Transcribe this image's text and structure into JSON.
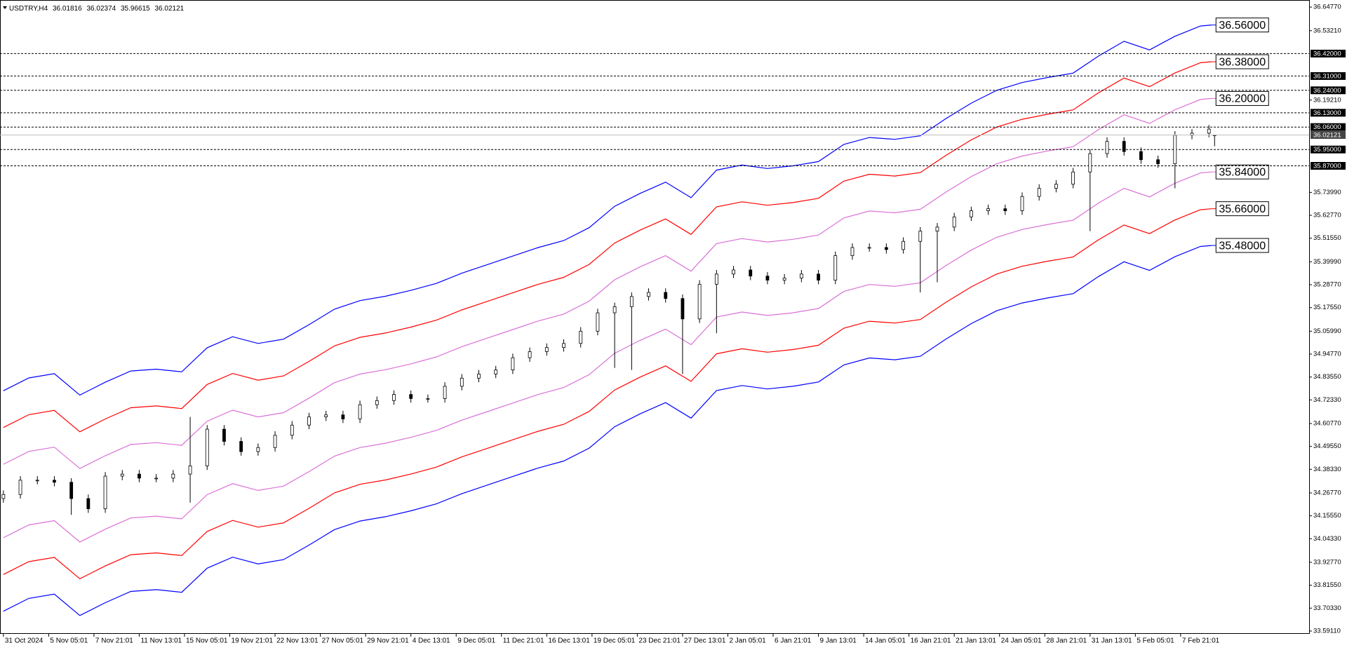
{
  "chart_data": {
    "type": "candlestick",
    "title": "USDTRY,H4",
    "xlim": [
      -1.2,
      461.4
    ],
    "ylim": [
      33.5806,
      36.6687
    ],
    "xticks": [
      {
        "value": 0,
        "label": "31 Oct 2024"
      },
      {
        "value": 16,
        "label": "5 Nov 05:01"
      },
      {
        "value": 32,
        "label": "7 Nov 21:01"
      },
      {
        "value": 48,
        "label": "11 Nov 13:01"
      },
      {
        "value": 64,
        "label": "15 Nov 05:01"
      },
      {
        "value": 80,
        "label": "19 Nov 21:01"
      },
      {
        "value": 96,
        "label": "22 Nov 13:01"
      },
      {
        "value": 112,
        "label": "27 Nov 05:01"
      },
      {
        "value": 128,
        "label": "29 Nov 21:01"
      },
      {
        "value": 144,
        "label": "4 Dec 13:01"
      },
      {
        "value": 160,
        "label": "9 Dec 05:01"
      },
      {
        "value": 176,
        "label": "11 Dec 21:01"
      },
      {
        "value": 192,
        "label": "16 Dec 13:01"
      },
      {
        "value": 208,
        "label": "19 Dec 05:01"
      },
      {
        "value": 224,
        "label": "23 Dec 21:01"
      },
      {
        "value": 240,
        "label": "27 Dec 13:01"
      },
      {
        "value": 256,
        "label": "2 Jan 05:01"
      },
      {
        "value": 272,
        "label": "6 Jan 21:01"
      },
      {
        "value": 288,
        "label": "9 Jan 13:01"
      },
      {
        "value": 304,
        "label": "14 Jan 05:01"
      },
      {
        "value": 320,
        "label": "16 Jan 21:01"
      },
      {
        "value": 336,
        "label": "21 Jan 13:01"
      },
      {
        "value": 352,
        "label": "24 Jan 05:01"
      },
      {
        "value": 368,
        "label": "28 Jan 21:01"
      },
      {
        "value": 384,
        "label": "31 Jan 13:01"
      },
      {
        "value": 400,
        "label": "5 Feb 05:01"
      },
      {
        "value": 416,
        "label": "7 Feb 21:01"
      }
    ],
    "yticks": [
      {
        "value": 36.6477,
        "label": "36.64770"
      },
      {
        "value": 36.5321,
        "label": "36.53210"
      },
      {
        "value": 36.1921,
        "label": "36.19210"
      },
      {
        "value": 35.7399,
        "label": "35.73990"
      },
      {
        "value": 35.6277,
        "label": "35.62770"
      },
      {
        "value": 35.5155,
        "label": "35.51550"
      },
      {
        "value": 35.3999,
        "label": "35.39990"
      },
      {
        "value": 35.2877,
        "label": "35.28770"
      },
      {
        "value": 35.1755,
        "label": "35.17550"
      },
      {
        "value": 35.0599,
        "label": "35.05990"
      },
      {
        "value": 34.9477,
        "label": "34.94770"
      },
      {
        "value": 34.8355,
        "label": "34.83550"
      },
      {
        "value": 34.7233,
        "label": "34.72330"
      },
      {
        "value": 34.6077,
        "label": "34.60770"
      },
      {
        "value": 34.4955,
        "label": "34.49550"
      },
      {
        "value": 34.3833,
        "label": "34.38330"
      },
      {
        "value": 34.2677,
        "label": "34.26770"
      },
      {
        "value": 34.1555,
        "label": "34.15550"
      },
      {
        "value": 34.0433,
        "label": "34.04330"
      },
      {
        "value": 33.9277,
        "label": "33.92770"
      },
      {
        "value": 33.8155,
        "label": "33.81550"
      },
      {
        "value": 33.7033,
        "label": "33.70330"
      },
      {
        "value": 33.5911,
        "label": "33.59110"
      }
    ],
    "levels": [
      {
        "value": 36.42,
        "label": "36.42000"
      },
      {
        "value": 36.31,
        "label": "36.31000"
      },
      {
        "value": 36.24,
        "label": "36.24000"
      },
      {
        "value": 36.13,
        "label": "36.13000"
      },
      {
        "value": 36.06,
        "label": "36.06000"
      },
      {
        "value": 35.95,
        "label": "35.95000"
      },
      {
        "value": 35.87,
        "label": "35.87000"
      }
    ],
    "candles": {
      "x": [
        0,
        6,
        12,
        18,
        24,
        30,
        36,
        42,
        48,
        54,
        60,
        66,
        72,
        78,
        84,
        90,
        96,
        102,
        108,
        114,
        120,
        126,
        132,
        138,
        144,
        150,
        156,
        162,
        168,
        174,
        180,
        186,
        192,
        198,
        204,
        210,
        216,
        222,
        228,
        234,
        240,
        246,
        252,
        258,
        264,
        270,
        276,
        282,
        288,
        294,
        300,
        306,
        312,
        318,
        324,
        330,
        336,
        342,
        348,
        354,
        360,
        366,
        372,
        378,
        384,
        390,
        396,
        402,
        408,
        414,
        420,
        426,
        428
      ],
      "open": [
        34.24,
        34.26,
        34.33,
        34.33,
        34.32,
        34.24,
        34.19,
        34.35,
        34.36,
        34.34,
        34.34,
        34.36,
        34.4,
        34.58,
        34.52,
        34.47,
        34.49,
        34.55,
        34.6,
        34.64,
        34.65,
        34.63,
        34.7,
        34.72,
        34.75,
        34.73,
        34.73,
        34.79,
        34.83,
        34.85,
        34.87,
        34.93,
        34.96,
        34.98,
        35.0,
        35.06,
        35.15,
        35.18,
        35.23,
        35.25,
        35.22,
        35.12,
        35.29,
        35.34,
        35.36,
        35.33,
        35.31,
        35.32,
        35.34,
        35.31,
        35.43,
        35.47,
        35.47,
        35.46,
        35.5,
        35.55,
        35.57,
        35.62,
        35.65,
        35.66,
        35.65,
        35.72,
        35.76,
        35.78,
        35.84,
        35.93,
        35.99,
        35.94,
        35.9,
        35.88,
        36.02,
        36.03,
        36.01816
      ],
      "high": [
        34.28,
        34.35,
        34.35,
        34.35,
        34.34,
        34.26,
        34.37,
        34.38,
        34.38,
        34.36,
        34.38,
        34.64,
        34.6,
        34.6,
        34.54,
        34.51,
        34.57,
        34.62,
        34.66,
        34.67,
        34.67,
        34.72,
        34.74,
        34.77,
        34.77,
        34.75,
        34.81,
        34.85,
        34.87,
        34.89,
        34.95,
        34.98,
        35.0,
        35.02,
        35.08,
        35.17,
        35.2,
        35.25,
        35.27,
        35.27,
        35.24,
        35.31,
        35.36,
        35.38,
        35.38,
        35.35,
        35.34,
        35.36,
        35.36,
        35.45,
        35.49,
        35.49,
        35.49,
        35.52,
        35.57,
        35.59,
        35.64,
        35.67,
        35.68,
        35.68,
        35.74,
        35.78,
        35.8,
        35.86,
        35.95,
        36.01,
        36.01,
        35.96,
        35.92,
        36.04,
        36.05,
        36.07,
        36.02374
      ],
      "low": [
        34.22,
        34.24,
        34.31,
        34.3,
        34.16,
        34.17,
        34.17,
        34.33,
        34.32,
        34.32,
        34.32,
        34.22,
        34.38,
        34.5,
        34.45,
        34.45,
        34.47,
        34.53,
        34.58,
        34.62,
        34.61,
        34.61,
        34.68,
        34.7,
        34.71,
        34.71,
        34.71,
        34.77,
        34.81,
        34.83,
        34.85,
        34.91,
        34.94,
        34.96,
        34.98,
        35.04,
        34.88,
        34.87,
        35.21,
        35.2,
        34.85,
        35.1,
        35.05,
        35.32,
        35.31,
        35.29,
        35.29,
        35.3,
        35.29,
        35.29,
        35.41,
        35.45,
        35.44,
        35.44,
        35.25,
        35.3,
        35.55,
        35.6,
        35.63,
        35.63,
        35.63,
        35.7,
        35.74,
        35.76,
        35.55,
        35.91,
        35.92,
        35.88,
        35.86,
        35.76,
        36.0,
        36.01,
        35.96615
      ],
      "close": [
        34.26,
        34.33,
        34.33,
        34.32,
        34.24,
        34.19,
        34.35,
        34.36,
        34.34,
        34.34,
        34.36,
        34.4,
        34.58,
        34.52,
        34.47,
        34.49,
        34.55,
        34.6,
        34.64,
        34.65,
        34.63,
        34.7,
        34.72,
        34.75,
        34.73,
        34.73,
        34.79,
        34.83,
        34.85,
        34.87,
        34.93,
        34.96,
        34.98,
        35.0,
        35.06,
        35.15,
        35.18,
        35.23,
        35.25,
        35.22,
        35.12,
        35.29,
        35.34,
        35.36,
        35.33,
        35.31,
        35.32,
        35.34,
        35.31,
        35.43,
        35.47,
        35.47,
        35.46,
        35.5,
        35.55,
        35.57,
        35.62,
        35.65,
        35.66,
        35.65,
        35.72,
        35.76,
        35.78,
        35.84,
        35.93,
        35.99,
        35.94,
        35.9,
        35.88,
        36.02,
        36.03,
        36.05,
        36.02121
      ]
    },
    "band_x": [
      0,
      9,
      18,
      27,
      36,
      45,
      54,
      63,
      72,
      81,
      90,
      99,
      108,
      117,
      126,
      135,
      144,
      153,
      162,
      171,
      180,
      189,
      198,
      207,
      216,
      225,
      234,
      243,
      252,
      261,
      270,
      279,
      288,
      297,
      306,
      315,
      324,
      333,
      342,
      351,
      360,
      369,
      378,
      387,
      396,
      405,
      414,
      423,
      427
    ],
    "bands": [
      {
        "color": "#0000ff",
        "end_label": "36.56000",
        "values": [
          34.768,
          34.831,
          34.852,
          34.747,
          34.81,
          34.865,
          34.874,
          34.861,
          34.979,
          35.033,
          35.0,
          35.021,
          35.092,
          35.168,
          35.21,
          35.231,
          35.26,
          35.294,
          35.344,
          35.386,
          35.428,
          35.47,
          35.504,
          35.567,
          35.672,
          35.735,
          35.79,
          35.714,
          35.849,
          35.874,
          35.857,
          35.87,
          35.891,
          35.975,
          36.009,
          36.0,
          36.017,
          36.101,
          36.177,
          36.24,
          36.278,
          36.303,
          36.324,
          36.408,
          36.48,
          36.438,
          36.505,
          36.555,
          36.56
        ]
      },
      {
        "color": "#ff0000",
        "end_label": "36.38000",
        "values": [
          34.588,
          34.651,
          34.672,
          34.567,
          34.63,
          34.685,
          34.694,
          34.681,
          34.799,
          34.853,
          34.82,
          34.841,
          34.912,
          34.988,
          35.03,
          35.051,
          35.08,
          35.114,
          35.164,
          35.206,
          35.248,
          35.29,
          35.324,
          35.387,
          35.492,
          35.555,
          35.61,
          35.534,
          35.669,
          35.694,
          35.677,
          35.69,
          35.711,
          35.795,
          35.829,
          35.82,
          35.837,
          35.921,
          35.997,
          36.06,
          36.098,
          36.123,
          36.144,
          36.228,
          36.3,
          36.258,
          36.325,
          36.375,
          36.38
        ]
      },
      {
        "color": "#da70d6",
        "end_label": "36.20000",
        "values": [
          34.408,
          34.471,
          34.492,
          34.387,
          34.45,
          34.505,
          34.514,
          34.501,
          34.619,
          34.673,
          34.64,
          34.661,
          34.732,
          34.808,
          34.85,
          34.871,
          34.9,
          34.934,
          34.984,
          35.026,
          35.068,
          35.11,
          35.144,
          35.207,
          35.312,
          35.375,
          35.43,
          35.354,
          35.489,
          35.514,
          35.497,
          35.51,
          35.531,
          35.615,
          35.649,
          35.64,
          35.657,
          35.741,
          35.817,
          35.88,
          35.918,
          35.943,
          35.964,
          36.048,
          36.12,
          36.078,
          36.145,
          36.195,
          36.2
        ]
      },
      {
        "color": "#da70d6",
        "end_label": "35.84000",
        "values": [
          34.048,
          34.111,
          34.132,
          34.027,
          34.09,
          34.145,
          34.154,
          34.141,
          34.259,
          34.313,
          34.28,
          34.301,
          34.372,
          34.448,
          34.49,
          34.511,
          34.54,
          34.574,
          34.624,
          34.666,
          34.708,
          34.75,
          34.784,
          34.847,
          34.952,
          35.015,
          35.07,
          34.994,
          35.129,
          35.154,
          35.137,
          35.15,
          35.171,
          35.255,
          35.289,
          35.28,
          35.297,
          35.381,
          35.457,
          35.52,
          35.558,
          35.583,
          35.604,
          35.688,
          35.76,
          35.718,
          35.785,
          35.835,
          35.84
        ]
      },
      {
        "color": "#ff0000",
        "end_label": "35.66000",
        "values": [
          33.868,
          33.931,
          33.952,
          33.847,
          33.91,
          33.965,
          33.974,
          33.961,
          34.079,
          34.133,
          34.1,
          34.121,
          34.192,
          34.268,
          34.31,
          34.331,
          34.36,
          34.394,
          34.444,
          34.486,
          34.528,
          34.57,
          34.604,
          34.667,
          34.772,
          34.835,
          34.89,
          34.814,
          34.949,
          34.974,
          34.957,
          34.97,
          34.991,
          35.075,
          35.109,
          35.1,
          35.117,
          35.201,
          35.277,
          35.34,
          35.378,
          35.403,
          35.424,
          35.508,
          35.58,
          35.538,
          35.605,
          35.655,
          35.66
        ]
      },
      {
        "color": "#0000ff",
        "end_label": "35.48000",
        "values": [
          33.688,
          33.751,
          33.772,
          33.667,
          33.73,
          33.785,
          33.794,
          33.781,
          33.899,
          33.953,
          33.92,
          33.941,
          34.012,
          34.088,
          34.13,
          34.151,
          34.18,
          34.214,
          34.264,
          34.306,
          34.348,
          34.39,
          34.424,
          34.487,
          34.592,
          34.655,
          34.71,
          34.634,
          34.769,
          34.794,
          34.777,
          34.79,
          34.811,
          34.895,
          34.929,
          34.92,
          34.937,
          35.021,
          35.097,
          35.16,
          35.198,
          35.223,
          35.244,
          35.328,
          35.4,
          35.358,
          35.425,
          35.475,
          35.48
        ]
      }
    ]
  }
}
